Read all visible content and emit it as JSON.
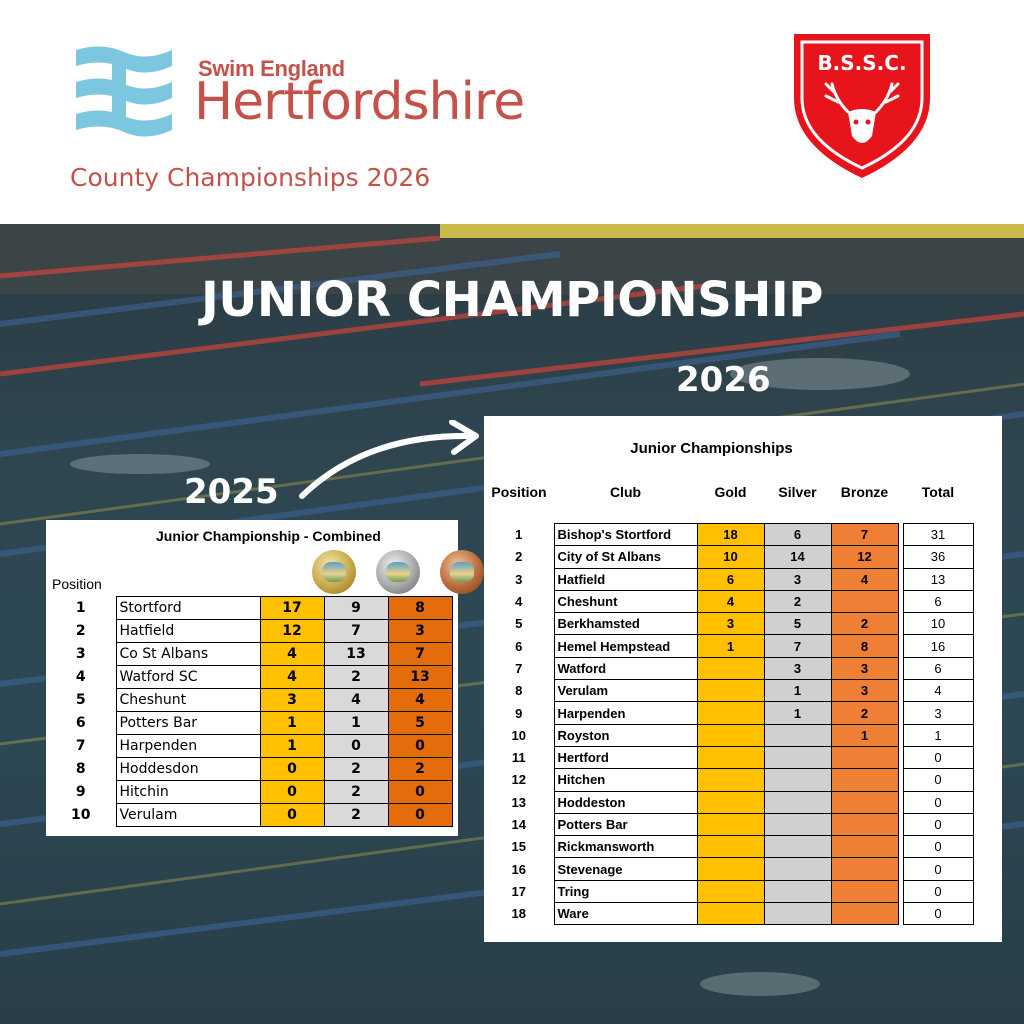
{
  "header": {
    "brand_top": "Swim England",
    "brand_main": "Hertfordshire",
    "subtitle": "County Championships 2026",
    "crest_text": "B.S.S.C.",
    "brand_color": "#c4524a",
    "logo_color": "#7cc6e0",
    "crest_color": "#e8141c"
  },
  "hero": {
    "title": "JUNIOR CHAMPIONSHIP",
    "year_new": "2026",
    "year_old": "2025"
  },
  "table_2025": {
    "title": "Junior Championship - Combined",
    "position_header": "Position",
    "medal_icons": [
      "gold-medal-icon",
      "silver-medal-icon",
      "bronze-medal-icon"
    ],
    "rows": [
      {
        "pos": "1",
        "club": "Stortford",
        "gold": "17",
        "silver": "9",
        "bronze": "8"
      },
      {
        "pos": "2",
        "club": "Hatfield",
        "gold": "12",
        "silver": "7",
        "bronze": "3"
      },
      {
        "pos": "3",
        "club": "Co St Albans",
        "gold": "4",
        "silver": "13",
        "bronze": "7"
      },
      {
        "pos": "4",
        "club": "Watford SC",
        "gold": "4",
        "silver": "2",
        "bronze": "13"
      },
      {
        "pos": "5",
        "club": "Cheshunt",
        "gold": "3",
        "silver": "4",
        "bronze": "4"
      },
      {
        "pos": "6",
        "club": "Potters Bar",
        "gold": "1",
        "silver": "1",
        "bronze": "5"
      },
      {
        "pos": "7",
        "club": "Harpenden",
        "gold": "1",
        "silver": "0",
        "bronze": "0"
      },
      {
        "pos": "8",
        "club": "Hoddesdon",
        "gold": "0",
        "silver": "2",
        "bronze": "2"
      },
      {
        "pos": "9",
        "club": "Hitchin",
        "gold": "0",
        "silver": "2",
        "bronze": "0"
      },
      {
        "pos": "10",
        "club": "Verulam",
        "gold": "0",
        "silver": "2",
        "bronze": "0"
      }
    ]
  },
  "table_2026": {
    "title": "Junior Championships",
    "headers": {
      "position": "Position",
      "club": "Club",
      "gold": "Gold",
      "silver": "Silver",
      "bronze": "Bronze",
      "total": "Total"
    },
    "rows": [
      {
        "pos": "1",
        "club": "Bishop's Stortford",
        "gold": "18",
        "silver": "6",
        "bronze": "7",
        "total": "31"
      },
      {
        "pos": "2",
        "club": "City of St Albans",
        "gold": "10",
        "silver": "14",
        "bronze": "12",
        "total": "36"
      },
      {
        "pos": "3",
        "club": "Hatfield",
        "gold": "6",
        "silver": "3",
        "bronze": "4",
        "total": "13"
      },
      {
        "pos": "4",
        "club": "Cheshunt",
        "gold": "4",
        "silver": "2",
        "bronze": "",
        "total": "6"
      },
      {
        "pos": "5",
        "club": "Berkhamsted",
        "gold": "3",
        "silver": "5",
        "bronze": "2",
        "total": "10"
      },
      {
        "pos": "6",
        "club": "Hemel Hempstead",
        "gold": "1",
        "silver": "7",
        "bronze": "8",
        "total": "16"
      },
      {
        "pos": "7",
        "club": "Watford",
        "gold": "",
        "silver": "3",
        "bronze": "3",
        "total": "6"
      },
      {
        "pos": "8",
        "club": "Verulam",
        "gold": "",
        "silver": "1",
        "bronze": "3",
        "total": "4"
      },
      {
        "pos": "9",
        "club": "Harpenden",
        "gold": "",
        "silver": "1",
        "bronze": "2",
        "total": "3"
      },
      {
        "pos": "10",
        "club": "Royston",
        "gold": "",
        "silver": "",
        "bronze": "1",
        "total": "1"
      },
      {
        "pos": "11",
        "club": "Hertford",
        "gold": "",
        "silver": "",
        "bronze": "",
        "total": "0"
      },
      {
        "pos": "12",
        "club": "Hitchen",
        "gold": "",
        "silver": "",
        "bronze": "",
        "total": "0"
      },
      {
        "pos": "13",
        "club": "Hoddeston",
        "gold": "",
        "silver": "",
        "bronze": "",
        "total": "0"
      },
      {
        "pos": "14",
        "club": "Potters Bar",
        "gold": "",
        "silver": "",
        "bronze": "",
        "total": "0"
      },
      {
        "pos": "15",
        "club": "Rickmansworth",
        "gold": "",
        "silver": "",
        "bronze": "",
        "total": "0"
      },
      {
        "pos": "16",
        "club": "Stevenage",
        "gold": "",
        "silver": "",
        "bronze": "",
        "total": "0"
      },
      {
        "pos": "17",
        "club": "Tring",
        "gold": "",
        "silver": "",
        "bronze": "",
        "total": "0"
      },
      {
        "pos": "18",
        "club": "Ware",
        "gold": "",
        "silver": "",
        "bronze": "",
        "total": "0"
      }
    ]
  }
}
